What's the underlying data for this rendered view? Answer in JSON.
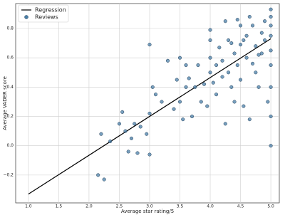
{
  "chart_data": {
    "type": "scatter",
    "xlabel": "Average star rating/5",
    "ylabel": "Average VADER score",
    "xlim": [
      0.79,
      5.14
    ],
    "ylim": [
      -0.39,
      0.97
    ],
    "xticks": [
      {
        "value": 1,
        "label": "1.0"
      },
      1.5,
      {
        "value": 2,
        "label": "2.0"
      },
      2.5,
      {
        "value": 3,
        "label": "3.0"
      },
      3.5,
      {
        "value": 4,
        "label": "4.0"
      },
      4.5,
      {
        "value": 5,
        "label": "5.0"
      }
    ],
    "yticks": [
      {
        "value": -0.2,
        "label": "−0.2"
      },
      {
        "value": 0,
        "label": "0.0"
      },
      0.2,
      0.4,
      0.6,
      0.8
    ],
    "grid": true,
    "legend": "upper left",
    "series": [
      {
        "name": "Regression",
        "type": "line",
        "color": "#000000",
        "x": [
          1.0,
          5.0
        ],
        "values": [
          -0.33,
          0.73
        ]
      },
      {
        "name": "Reviews",
        "type": "scatter",
        "color": "#4a7fa8",
        "x": [
          2.15,
          2.25,
          2.2,
          2.35,
          2.5,
          2.55,
          2.6,
          2.65,
          2.7,
          2.75,
          2.8,
          2.85,
          2.95,
          3.0,
          3.0,
          3.0,
          3.05,
          3.1,
          3.3,
          3.4,
          3.45,
          3.5,
          3.5,
          3.55,
          3.6,
          3.65,
          3.7,
          3.75,
          3.8,
          3.85,
          3.9,
          3.95,
          4.0,
          4.0,
          4.0,
          4.0,
          4.05,
          4.1,
          4.15,
          4.2,
          4.2,
          4.25,
          4.3,
          4.3,
          4.35,
          4.4,
          4.4,
          4.45,
          4.5,
          4.5,
          4.5,
          4.55,
          4.6,
          4.6,
          4.65,
          4.7,
          4.7,
          4.75,
          4.8,
          4.8,
          4.85,
          4.9,
          4.95,
          5.0,
          5.0,
          5.0,
          5.0,
          5.0,
          5.0,
          5.0,
          5.0,
          5.0,
          4.9,
          4.65,
          4.45,
          4.25,
          3.2,
          3.6,
          4.1,
          4.35,
          4.75,
          4.85,
          4.55
        ],
        "values": [
          -0.2,
          -0.23,
          0.08,
          0.03,
          0.15,
          0.23,
          0.1,
          -0.04,
          0.05,
          0.15,
          -0.05,
          0.13,
          0.08,
          0.22,
          -0.06,
          0.69,
          0.4,
          0.35,
          0.58,
          0.25,
          0.45,
          0.6,
          0.3,
          0.18,
          0.4,
          0.46,
          0.2,
          0.4,
          0.55,
          0.3,
          0.42,
          0.27,
          0.5,
          0.79,
          0.6,
          0.72,
          0.43,
          0.35,
          0.67,
          0.47,
          0.58,
          0.15,
          0.5,
          0.72,
          0.4,
          0.3,
          0.63,
          0.55,
          0.45,
          0.69,
          0.82,
          0.27,
          0.6,
          0.75,
          0.18,
          0.56,
          0.82,
          0.68,
          0.4,
          0.62,
          0.77,
          0.72,
          0.3,
          0.0,
          0.2,
          0.4,
          0.55,
          0.65,
          0.75,
          0.82,
          0.88,
          0.93,
          0.85,
          0.88,
          0.86,
          0.85,
          0.3,
          0.55,
          0.55,
          0.7,
          0.5,
          0.63,
          0.72
        ]
      }
    ]
  }
}
